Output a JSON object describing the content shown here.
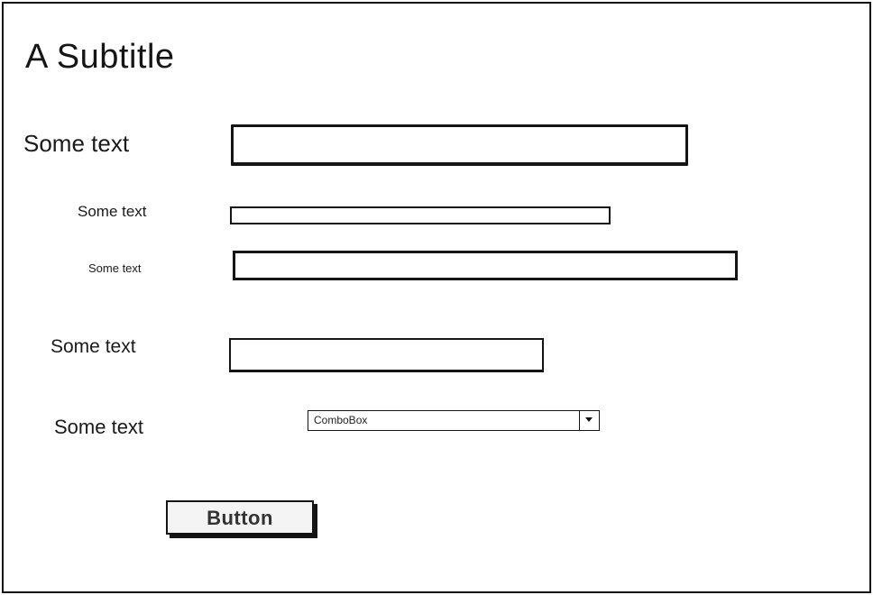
{
  "form": {
    "subtitle": "A Subtitle",
    "rows": [
      {
        "label": "Some text"
      },
      {
        "label": "Some text"
      },
      {
        "label": "Some text"
      },
      {
        "label": "Some text"
      },
      {
        "label": "Some text"
      }
    ],
    "inputs": [
      {
        "value": ""
      },
      {
        "value": ""
      },
      {
        "value": ""
      },
      {
        "value": ""
      }
    ],
    "combobox": {
      "selected": "ComboBox",
      "icon": "chevron-down-icon"
    },
    "button_label": "Button"
  }
}
